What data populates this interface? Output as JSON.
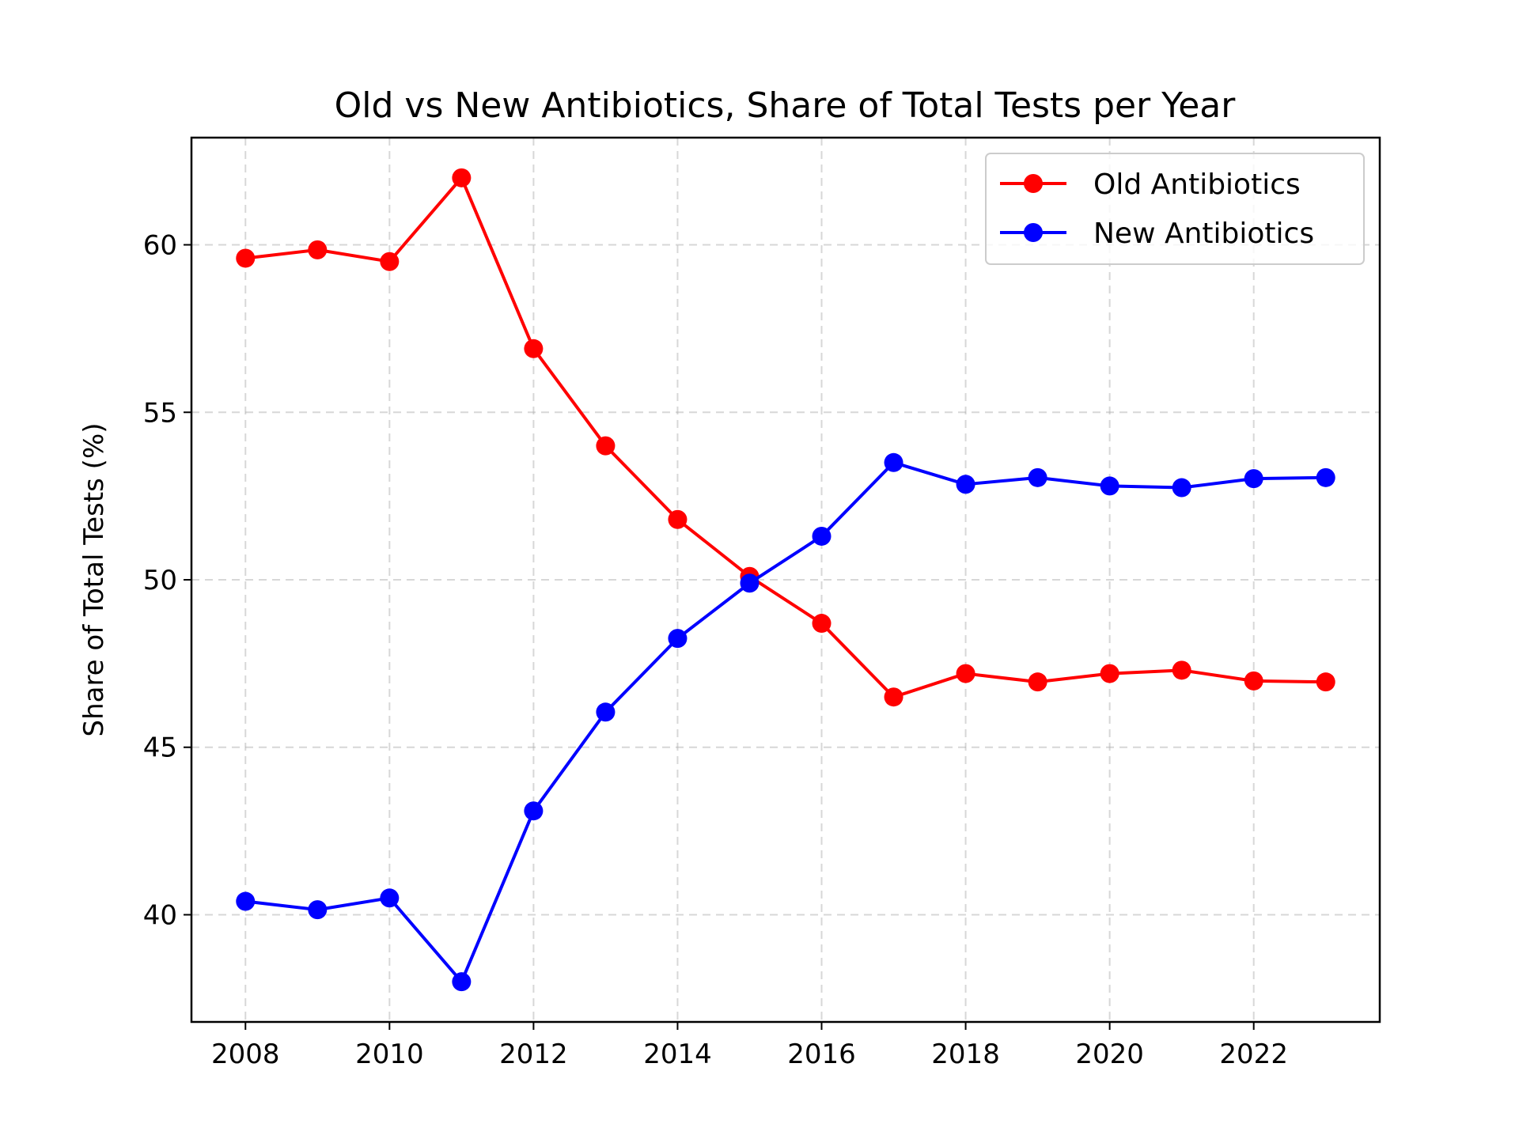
{
  "chart_data": {
    "type": "line",
    "title": "Old vs New Antibiotics, Share of Total Tests per Year",
    "xlabel": "",
    "ylabel": "Share of Total Tests (%)",
    "x": [
      2008,
      2009,
      2010,
      2011,
      2012,
      2013,
      2014,
      2015,
      2016,
      2017,
      2018,
      2019,
      2020,
      2021,
      2022,
      2023
    ],
    "xlim": [
      2007.25,
      2023.75
    ],
    "ylim": [
      36.8,
      63.2
    ],
    "xticks": [
      2008,
      2010,
      2012,
      2014,
      2016,
      2018,
      2020,
      2022
    ],
    "yticks": [
      40,
      45,
      50,
      55,
      60
    ],
    "grid": true,
    "legend_position": "top-right",
    "series": [
      {
        "name": "Old Antibiotics",
        "color": "#ff0000",
        "marker": "circle",
        "values": [
          59.6,
          59.85,
          59.5,
          62.0,
          56.9,
          54.0,
          51.8,
          50.1,
          48.7,
          46.5,
          47.2,
          46.95,
          47.2,
          47.3,
          46.98,
          46.95
        ]
      },
      {
        "name": "New Antibiotics",
        "color": "#0000ff",
        "marker": "circle",
        "values": [
          40.4,
          40.15,
          40.5,
          38.0,
          43.1,
          46.05,
          48.25,
          49.9,
          51.3,
          53.5,
          52.85,
          53.05,
          52.8,
          52.75,
          53.02,
          53.05
        ]
      }
    ]
  }
}
